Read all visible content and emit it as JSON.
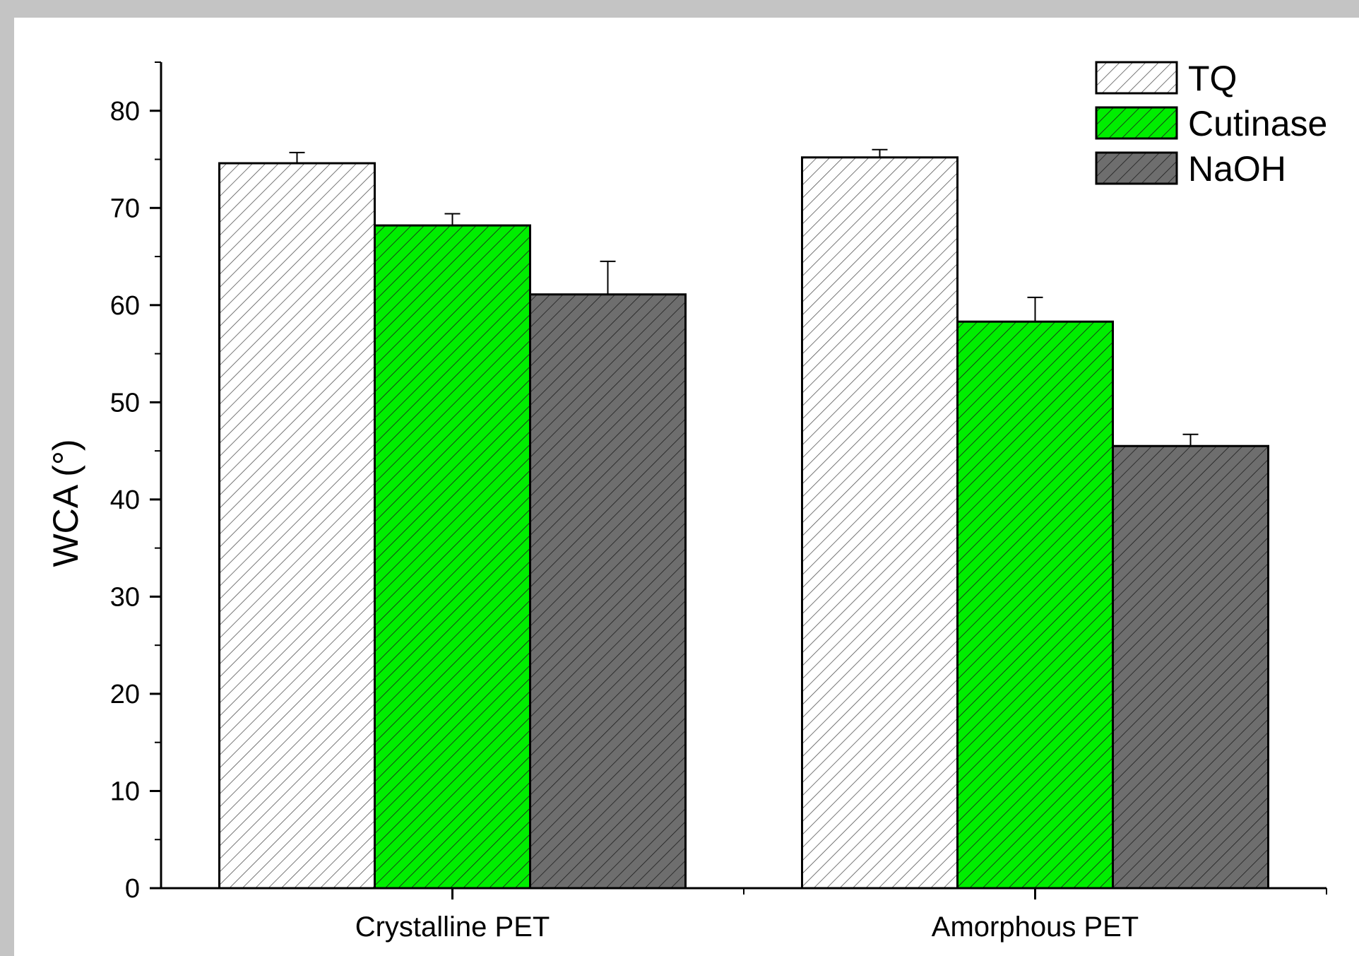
{
  "chart_data": {
    "type": "bar",
    "categories": [
      "Crystalline PET",
      "Amorphous PET"
    ],
    "series": [
      {
        "name": "TQ",
        "values": [
          74.6,
          75.2
        ],
        "errors": [
          1.1,
          0.8
        ],
        "fill": "#ffffff",
        "hatch": "#555555"
      },
      {
        "name": "Cutinase",
        "values": [
          68.2,
          58.3
        ],
        "errors": [
          1.2,
          2.5
        ],
        "fill": "#00ee00",
        "hatch": "#1a1a1a"
      },
      {
        "name": "NaOH",
        "values": [
          61.1,
          45.5
        ],
        "errors": [
          3.4,
          1.2
        ],
        "fill": "#6e6e6e",
        "hatch": "#1f1f1f"
      }
    ],
    "title": "",
    "xlabel": "",
    "ylabel": "WCA (°)",
    "ylim": [
      0,
      85
    ],
    "yticks": [
      0,
      10,
      20,
      30,
      40,
      50,
      60,
      70,
      80
    ],
    "grid": false,
    "legend_position": "top-right"
  }
}
